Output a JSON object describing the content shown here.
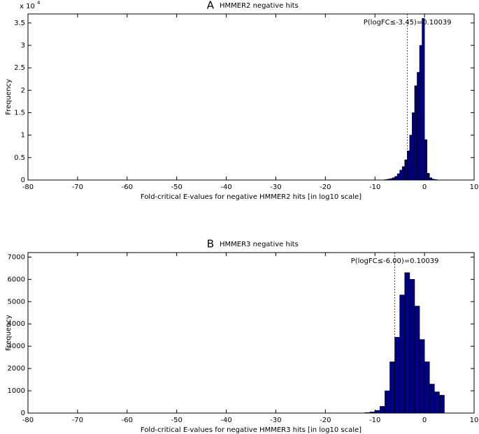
{
  "chart_data": [
    {
      "type": "histogram",
      "panel": "A",
      "title": "HMMER2 negative hits",
      "xlabel": "Fold-critical E-values for negative HMMER2 hits [in log10 scale]",
      "ylabel": "Frequency",
      "y_multiplier": {
        "base": "x 10",
        "exponent": "4"
      },
      "bins": [
        -8,
        -7.5,
        -7,
        -6.5,
        -6,
        -5.5,
        -5,
        -4.5,
        -4,
        -3.5,
        -3,
        -2.5,
        -2,
        -1.5,
        -1,
        -0.5,
        0,
        0.5,
        1,
        1.5,
        2,
        2.5
      ],
      "counts": [
        0.01,
        0.02,
        0.03,
        0.05,
        0.08,
        0.14,
        0.22,
        0.3,
        0.45,
        0.65,
        1.0,
        1.5,
        2.1,
        2.4,
        3.0,
        3.6,
        0.9,
        0.15,
        0.05,
        0.02,
        0.01
      ],
      "color": "#000080",
      "threshold": -3.45,
      "annotation": "P(logFC≤-3.45)=0.10039",
      "xlim": [
        -80,
        10
      ],
      "xticks": [
        -80,
        -70,
        -60,
        -50,
        -40,
        -30,
        -20,
        -10,
        0,
        10
      ],
      "ylim": [
        0,
        3.7
      ],
      "yticks": [
        0,
        0.5,
        1,
        1.5,
        2,
        2.5,
        3,
        3.5
      ]
    },
    {
      "type": "histogram",
      "panel": "B",
      "title": "HMMER3 negative hits",
      "xlabel": "Fold-critical E-values for negative HMMER3 hits [in log10 scale]",
      "ylabel": "Frequency",
      "bins": [
        -12,
        -11,
        -10,
        -9,
        -8,
        -7,
        -6,
        -5,
        -4,
        -3,
        -2,
        -1,
        0,
        1,
        2,
        3,
        4
      ],
      "counts": [
        20,
        50,
        120,
        300,
        1000,
        2300,
        3400,
        5300,
        6300,
        6000,
        4800,
        3300,
        2300,
        1300,
        950,
        800
      ],
      "color": "#000080",
      "threshold": -6,
      "annotation": "P(logFC≤-6.00)=0.10039",
      "xlim": [
        -80,
        10
      ],
      "xticks": [
        -80,
        -70,
        -60,
        -50,
        -40,
        -30,
        -20,
        -10,
        0,
        10
      ],
      "ylim": [
        0,
        7200
      ],
      "yticks": [
        0,
        1000,
        2000,
        3000,
        4000,
        5000,
        6000,
        7000
      ]
    }
  ]
}
